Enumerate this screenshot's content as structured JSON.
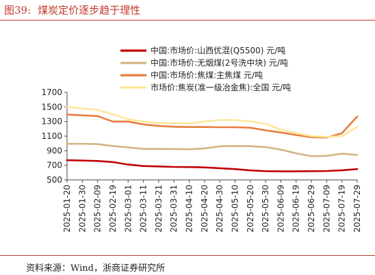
{
  "figure": {
    "number": "图39:",
    "title": "煤炭定价逐步趋于理性",
    "source": "资料来源：Wind，浙商证券研究所"
  },
  "colors": {
    "title": "#c0392b",
    "rule": "#c0392b"
  },
  "chart_data": {
    "type": "line",
    "x": [
      "2025-01-20",
      "2025-01-30",
      "2025-02-09",
      "2025-02-19",
      "2025-03-01",
      "2025-03-11",
      "2025-03-21",
      "2025-03-31",
      "2025-04-10",
      "2025-04-20",
      "2025-04-30",
      "2025-05-10",
      "2025-05-20",
      "2025-05-30",
      "2025-06-09",
      "2025-06-19",
      "2025-06-29",
      "2025-07-09",
      "2025-07-19",
      "2025-07-29"
    ],
    "ylim": [
      500,
      1700
    ],
    "yticks": [
      500,
      700,
      900,
      1100,
      1300,
      1500,
      1700
    ],
    "grid": false,
    "legend": "top",
    "series": [
      {
        "name": "中国:市场价:山西优混(Q5500)  元/吨",
        "color": "#c00000",
        "values": [
          770,
          765,
          760,
          745,
          710,
          690,
          685,
          678,
          676,
          672,
          660,
          648,
          630,
          620,
          618,
          618,
          620,
          622,
          632,
          648
        ]
      },
      {
        "name": "中国:市场价:无烟煤(2号洗中块)  元/吨",
        "color": "#d4b483",
        "values": [
          995,
          995,
          990,
          965,
          945,
          925,
          925,
          924,
          920,
          932,
          960,
          965,
          962,
          950,
          915,
          865,
          825,
          830,
          860,
          842
        ]
      },
      {
        "name": "中国:市场价:焦煤:主焦煤  元/吨",
        "color": "#e87c3e",
        "values": [
          1395,
          1385,
          1375,
          1300,
          1300,
          1260,
          1240,
          1228,
          1225,
          1225,
          1222,
          1222,
          1215,
          1180,
          1150,
          1115,
          1085,
          1080,
          1140,
          1370
        ]
      },
      {
        "name": "市场价:焦炭(准一级冶金焦):全国  元/吨",
        "color": "#ffe699",
        "values": [
          1500,
          1480,
          1460,
          1400,
          1330,
          1300,
          1280,
          1275,
          1275,
          1300,
          1320,
          1320,
          1300,
          1270,
          1190,
          1140,
          1100,
          1090,
          1100,
          1225
        ]
      }
    ]
  }
}
